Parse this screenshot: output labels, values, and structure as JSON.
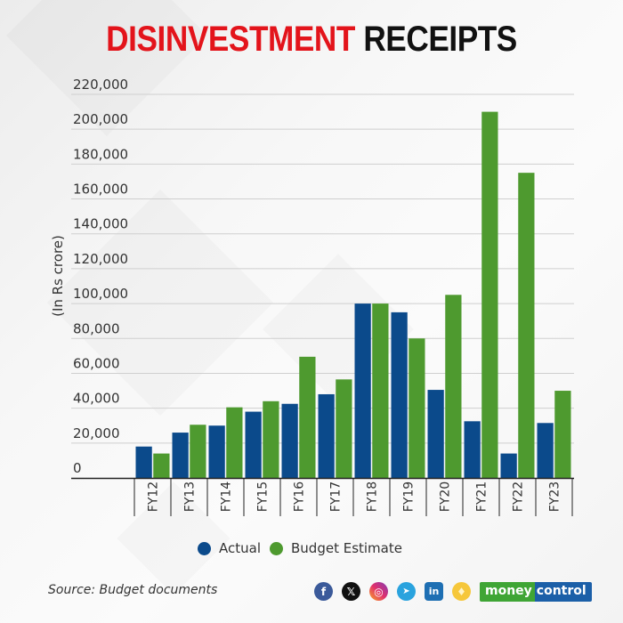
{
  "header": {
    "title_highlight": "DISINVESTMENT",
    "title_rest": "RECEIPTS"
  },
  "colors": {
    "actual": "#0b4a8b",
    "budget_estimate": "#4e9a2f",
    "title_red": "#e3141b",
    "grid": "#cfcfcf"
  },
  "chart_data": {
    "type": "bar",
    "title": "DISINVESTMENT RECEIPTS",
    "xlabel": "",
    "ylabel": "(In Rs crore)",
    "ylim": [
      0,
      220000
    ],
    "yticks": [
      0,
      20000,
      40000,
      60000,
      80000,
      100000,
      120000,
      140000,
      160000,
      180000,
      200000,
      220000
    ],
    "ytick_labels": [
      "0",
      "20,000",
      "40,000",
      "60,000",
      "80,000",
      "100,000",
      "120,000",
      "140,000",
      "160,000",
      "180,000",
      "200,000",
      "220,000"
    ],
    "grid": true,
    "legend_position": "bottom",
    "categories": [
      "FY12",
      "FY13",
      "FY14",
      "FY15",
      "FY16",
      "FY17",
      "FY18",
      "FY19",
      "FY20",
      "FY21",
      "FY22",
      "FY23"
    ],
    "series": [
      {
        "name": "Actual",
        "color": "#0b4a8b",
        "values": [
          18000,
          26000,
          30000,
          38000,
          42500,
          48000,
          100000,
          95000,
          50500,
          32500,
          14000,
          31500
        ]
      },
      {
        "name": "Budget Estimate",
        "color": "#4e9a2f",
        "values": [
          14000,
          30500,
          40500,
          44000,
          69500,
          56500,
          100000,
          80000,
          105000,
          210000,
          175000,
          50000
        ]
      }
    ]
  },
  "footer": {
    "source": "Source: Budget documents",
    "social_icons": [
      "facebook-icon",
      "x-icon",
      "instagram-icon",
      "telegram-icon",
      "linkedin-icon",
      "koo-icon"
    ],
    "facebook_glyph": "f",
    "x_glyph": "𝕏",
    "instagram_glyph": "◎",
    "telegram_glyph": "➤",
    "linkedin_glyph": "in",
    "koo_glyph": "♦",
    "logo_money": "money",
    "logo_control": "control"
  }
}
